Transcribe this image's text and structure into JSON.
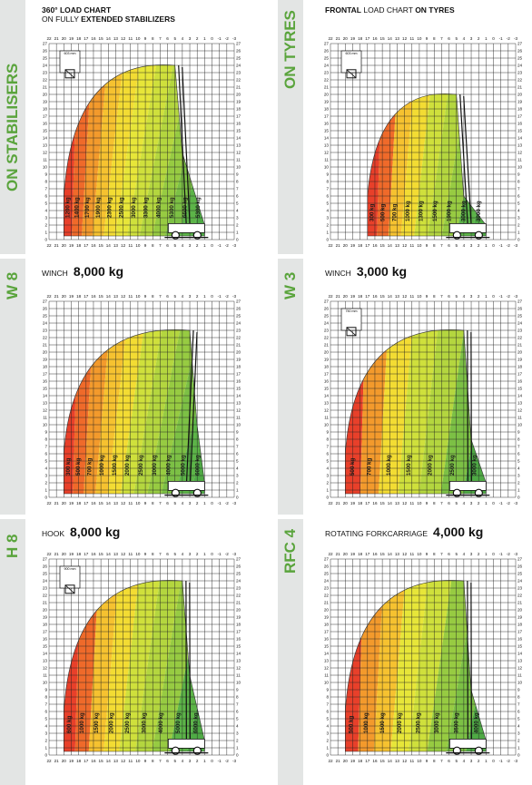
{
  "sections": [
    {
      "side": "ON STABILISERS",
      "title_pre": "360° LOAD CHART",
      "title_line2_pre": "ON FULLY ",
      "title_line2_bold": "EXTENDED STABILIZERS",
      "weight": ""
    },
    {
      "side": "ON TYRES",
      "title_bold_a": "FRONTAL",
      "title_pre": " LOAD CHART ",
      "title_bold_b": "ON TYRES",
      "weight": ""
    },
    {
      "side": "W 8",
      "title_pre": "WINCH",
      "weight": "8,000 kg"
    },
    {
      "side": "W 3",
      "title_pre": "WINCH",
      "weight": "3,000 kg"
    },
    {
      "side": "H 8",
      "title_pre": "HOOK",
      "weight": "8,000 kg"
    },
    {
      "side": "RFC 4",
      "title_pre": "ROTATING FORKCARRIAGE",
      "weight": "4,000 kg"
    }
  ],
  "charts": [
    {
      "name": "stabilisers",
      "loads": [
        "1200 kg",
        "1400 kg",
        "1700 kg",
        "1900 kg",
        "2300 kg",
        "2500 kg",
        "3000 kg",
        "3300 kg",
        "4000 kg",
        "5300 kg",
        "6600 kg",
        "5300 kg"
      ]
    },
    {
      "name": "tyres",
      "loads": [
        "300 kg",
        "500 kg",
        "700 kg",
        "1000 kg",
        "1300 kg",
        "1500 kg",
        "1900 kg",
        "3000 kg",
        "3900 kg"
      ]
    },
    {
      "name": "w8",
      "loads": [
        "300 kg",
        "500 kg",
        "700 kg",
        "1000 kg",
        "1500 kg",
        "2000 kg",
        "2500 kg",
        "3000 kg",
        "4000 kg",
        "5000 kg",
        "6000 kg"
      ]
    },
    {
      "name": "w3",
      "loads": [
        "500 kg",
        "700 kg",
        "1000 kg",
        "1500 kg",
        "2000 kg",
        "2500 kg",
        "3000 kg"
      ]
    },
    {
      "name": "h8",
      "loads": [
        "600 kg",
        "1000 kg",
        "1500 kg",
        "2000 kg",
        "2500 kg",
        "3000 kg",
        "4000 kg",
        "5000 kg",
        "6000 kg"
      ]
    },
    {
      "name": "rfc4",
      "loads": [
        "500 kg",
        "1000 kg",
        "1500 kg",
        "2000 kg",
        "2500 kg",
        "3000 kg",
        "3500 kg",
        "4000 kg"
      ]
    }
  ],
  "axis": {
    "x_ticks": [
      "22",
      "21",
      "20",
      "19",
      "18",
      "17",
      "16",
      "15",
      "14",
      "13",
      "12",
      "11",
      "10",
      "9",
      "8",
      "7",
      "6",
      "5",
      "4",
      "3",
      "2",
      "1",
      "0",
      "-1",
      "-2",
      "-3"
    ],
    "y_max": 27
  },
  "annotations": {
    "stab_box": "603 mm",
    "tyres_box": "603 mm",
    "w3_box": "750 mm",
    "h8_box": "900 mm",
    "top_val": "26.8m"
  },
  "colors": {
    "accent": "#5aa43c",
    "red": "#e8402a",
    "green": "#5cb448"
  }
}
